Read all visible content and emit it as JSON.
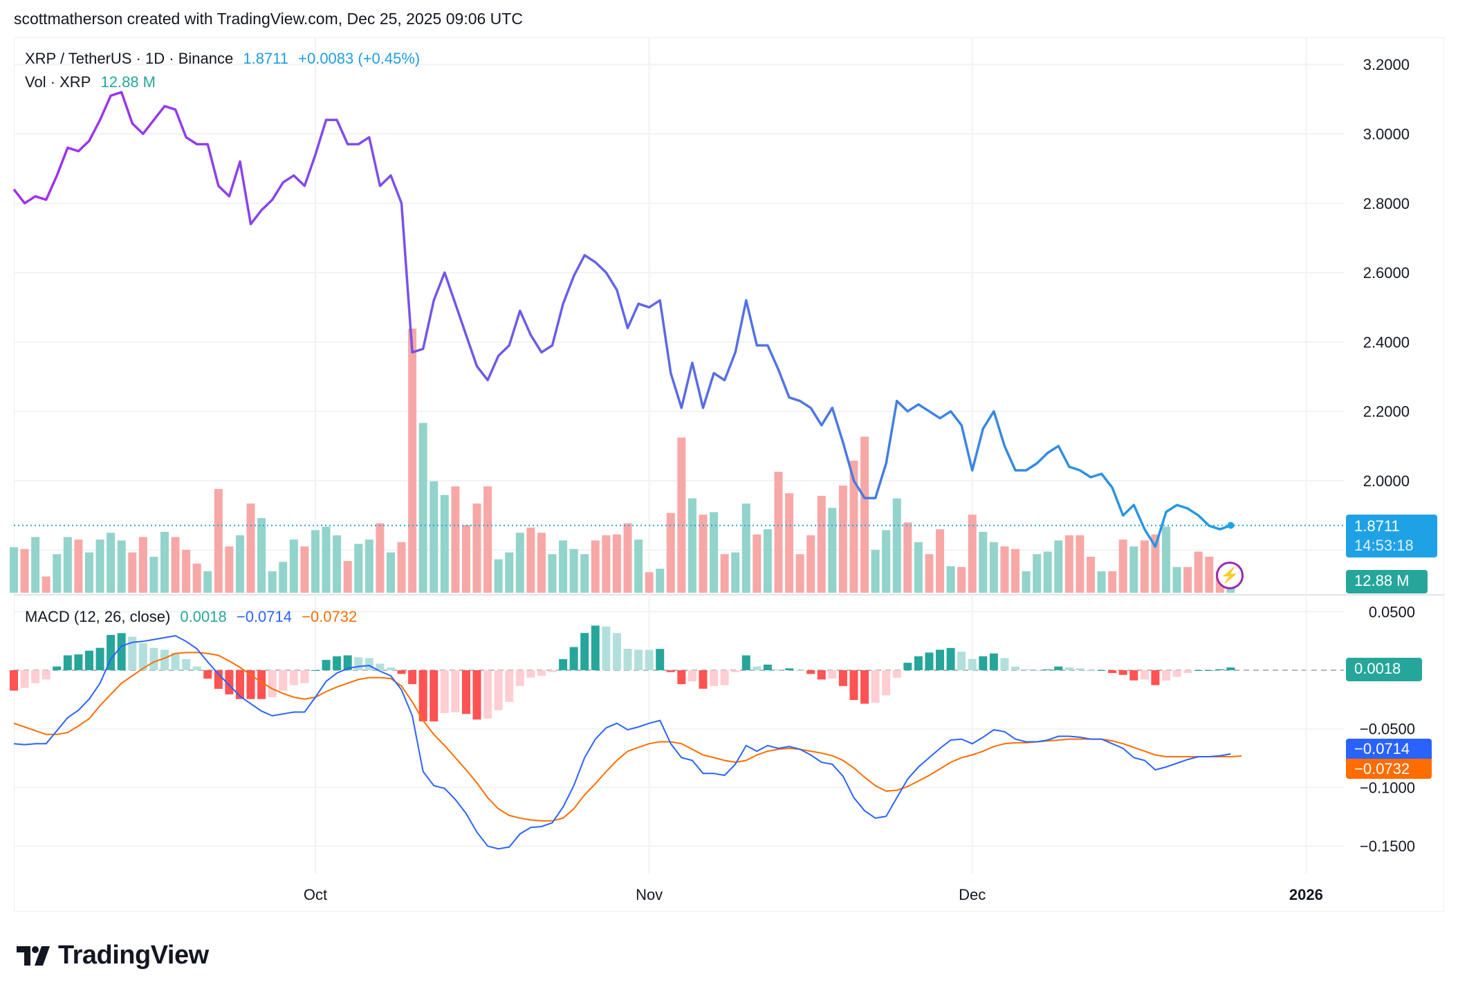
{
  "header": {
    "attribution": "scottmatherson created with TradingView.com, Dec 25, 2025 09:06 UTC"
  },
  "legend": {
    "symbol": "XRP / TetherUS · 1D · Binance",
    "last_price": "1.8711",
    "change": "+0.0083 (+0.45%)",
    "volume_label": "Vol · XRP",
    "volume_value": "12.88 M",
    "macd_label": "MACD (12, 26, close)",
    "macd_hist": "0.0018",
    "macd_line": "−0.0714",
    "macd_signal": "−0.0732"
  },
  "tags": {
    "price": "1.8711",
    "countdown": "14:53:18",
    "volume": "12.88 M",
    "hist": "0.0018",
    "macd": "−0.0714",
    "signal": "−0.0732"
  },
  "logo": {
    "text": "TradingView"
  },
  "colors": {
    "price_line_start": "#a42cf0",
    "price_line_end": "#1e9de0",
    "volume_up": "#92d3cb",
    "volume_down": "#f7a8a6",
    "hist_up_strong": "#26a69a",
    "hist_up_weak": "#b2dfdb",
    "hist_down_strong": "#ff5252",
    "hist_down_weak": "#ffcdd2",
    "macd_line": "#2962ff",
    "signal_line": "#ff6d00",
    "price_tag": "#1fa2e5",
    "volume_tag": "#26a69a"
  },
  "chart_data": {
    "type": "line",
    "x_ticks": [
      "Oct",
      "Nov",
      "Dec",
      "2026"
    ],
    "price_ticks": [
      "3.2000",
      "3.0000",
      "2.8000",
      "2.6000",
      "2.4000",
      "2.2000",
      "2.0000"
    ],
    "macd_ticks": [
      "0.0500",
      "−0.0500",
      "−0.1000",
      "−0.1500"
    ],
    "grid": true,
    "price_close": [
      2.84,
      2.8,
      2.82,
      2.81,
      2.88,
      2.96,
      2.95,
      2.98,
      3.04,
      3.11,
      3.12,
      3.03,
      3.0,
      3.04,
      3.08,
      3.07,
      2.99,
      2.97,
      2.97,
      2.85,
      2.82,
      2.92,
      2.74,
      2.78,
      2.81,
      2.86,
      2.88,
      2.85,
      2.94,
      3.04,
      3.04,
      2.97,
      2.97,
      2.99,
      2.85,
      2.88,
      2.8,
      2.37,
      2.38,
      2.52,
      2.6,
      2.51,
      2.42,
      2.33,
      2.29,
      2.36,
      2.39,
      2.49,
      2.42,
      2.37,
      2.39,
      2.51,
      2.59,
      2.65,
      2.63,
      2.6,
      2.55,
      2.44,
      2.51,
      2.5,
      2.52,
      2.31,
      2.21,
      2.34,
      2.21,
      2.31,
      2.29,
      2.37,
      2.52,
      2.39,
      2.39,
      2.32,
      2.24,
      2.23,
      2.21,
      2.16,
      2.21,
      2.11,
      2.0,
      1.95,
      1.95,
      2.05,
      2.23,
      2.2,
      2.22,
      2.2,
      2.18,
      2.2,
      2.16,
      2.03,
      2.15,
      2.2,
      2.1,
      2.03,
      2.03,
      2.05,
      2.08,
      2.1,
      2.04,
      2.03,
      2.01,
      2.02,
      1.98,
      1.9,
      1.93,
      1.86,
      1.81,
      1.91,
      1.93,
      1.92,
      1.9,
      1.87,
      1.86,
      1.8711
    ],
    "volume_millions": [
      53,
      51,
      65,
      19,
      45,
      65,
      62,
      47,
      62,
      70,
      61,
      47,
      65,
      42,
      71,
      65,
      50,
      34,
      25,
      121,
      54,
      67,
      104,
      87,
      25,
      36,
      62,
      54,
      73,
      77,
      67,
      37,
      57,
      62,
      81,
      47,
      59,
      308,
      198,
      130,
      114,
      124,
      79,
      104,
      124,
      39,
      47,
      70,
      76,
      70,
      45,
      61,
      51,
      45,
      61,
      67,
      68,
      81,
      62,
      24,
      28,
      93,
      181,
      110,
      91,
      94,
      45,
      47,
      104,
      68,
      74,
      141,
      116,
      45,
      67,
      113,
      99,
      125,
      154,
      182,
      50,
      73,
      110,
      82,
      59,
      45,
      74,
      31,
      30,
      91,
      71,
      59,
      54,
      51,
      25,
      45,
      48,
      61,
      67,
      67,
      42,
      25,
      25,
      62,
      54,
      61,
      68,
      77,
      30,
      30,
      48,
      42,
      25,
      12.88
    ],
    "macd": [
      -0.0627,
      -0.0635,
      -0.0627,
      -0.0627,
      -0.0516,
      -0.0405,
      -0.0341,
      -0.0246,
      -0.0111,
      0.0095,
      0.0206,
      0.0238,
      0.0246,
      0.0262,
      0.0278,
      0.0294,
      0.0246,
      0.0183,
      0.0071,
      -0.0032,
      -0.0127,
      -0.0222,
      -0.0286,
      -0.0349,
      -0.0389,
      -0.0373,
      -0.0357,
      -0.0357,
      -0.023,
      -0.0095,
      -0.0024,
      0.0016,
      0.0032,
      0.004,
      -0.0008,
      -0.0048,
      -0.0167,
      -0.0389,
      -0.0865,
      -0.0985,
      -0.1008,
      -0.1104,
      -0.1223,
      -0.1382,
      -0.1501,
      -0.1524,
      -0.1509,
      -0.1397,
      -0.1342,
      -0.1334,
      -0.1302,
      -0.1167,
      -0.0985,
      -0.0746,
      -0.0588,
      -0.0492,
      -0.0453,
      -0.0508,
      -0.0484,
      -0.0453,
      -0.0429,
      -0.0627,
      -0.0746,
      -0.077,
      -0.0881,
      -0.0881,
      -0.0897,
      -0.0802,
      -0.0643,
      -0.0691,
      -0.0643,
      -0.0667,
      -0.0651,
      -0.0675,
      -0.0723,
      -0.0786,
      -0.0802,
      -0.0905,
      -0.1088,
      -0.1199,
      -0.1262,
      -0.1247,
      -0.1088,
      -0.0929,
      -0.0826,
      -0.0746,
      -0.0667,
      -0.0596,
      -0.0588,
      -0.0627,
      -0.0572,
      -0.0508,
      -0.0524,
      -0.0588,
      -0.0611,
      -0.0611,
      -0.0596,
      -0.0564,
      -0.0564,
      -0.0572,
      -0.0588,
      -0.0588,
      -0.0627,
      -0.0667,
      -0.0746,
      -0.077,
      -0.085,
      -0.0826,
      -0.0794,
      -0.0762,
      -0.0738,
      -0.0738,
      -0.073,
      -0.0714
    ],
    "signal": [
      -0.0453,
      -0.0484,
      -0.0516,
      -0.0548,
      -0.0548,
      -0.0532,
      -0.0476,
      -0.0413,
      -0.0302,
      -0.0206,
      -0.0111,
      -0.0048,
      0.0016,
      0.0071,
      0.0103,
      0.0143,
      0.0151,
      0.0151,
      0.0143,
      0.0127,
      0.0079,
      0.0024,
      -0.004,
      -0.0103,
      -0.0159,
      -0.0199,
      -0.023,
      -0.0246,
      -0.023,
      -0.0183,
      -0.0143,
      -0.0111,
      -0.0079,
      -0.0064,
      -0.0064,
      -0.0071,
      -0.0135,
      -0.027,
      -0.0429,
      -0.0548,
      -0.0643,
      -0.0746,
      -0.085,
      -0.0961,
      -0.1088,
      -0.1183,
      -0.1239,
      -0.1262,
      -0.1278,
      -0.1286,
      -0.1286,
      -0.1262,
      -0.1183,
      -0.1064,
      -0.0969,
      -0.0865,
      -0.077,
      -0.0691,
      -0.0659,
      -0.0627,
      -0.0611,
      -0.0611,
      -0.0627,
      -0.0675,
      -0.0723,
      -0.0746,
      -0.077,
      -0.0786,
      -0.077,
      -0.0723,
      -0.0691,
      -0.0675,
      -0.0667,
      -0.0675,
      -0.0691,
      -0.0707,
      -0.073,
      -0.077,
      -0.0834,
      -0.0913,
      -0.0985,
      -0.1032,
      -0.1024,
      -0.0993,
      -0.0945,
      -0.0897,
      -0.0842,
      -0.0786,
      -0.0746,
      -0.0723,
      -0.0691,
      -0.0651,
      -0.0627,
      -0.0619,
      -0.0619,
      -0.0611,
      -0.0603,
      -0.0596,
      -0.0588,
      -0.0588,
      -0.0588,
      -0.0588,
      -0.0603,
      -0.0627,
      -0.0659,
      -0.0691,
      -0.0723,
      -0.0738,
      -0.0738,
      -0.0738,
      -0.0738,
      -0.0738,
      -0.0738,
      -0.0738,
      -0.0732
    ]
  }
}
